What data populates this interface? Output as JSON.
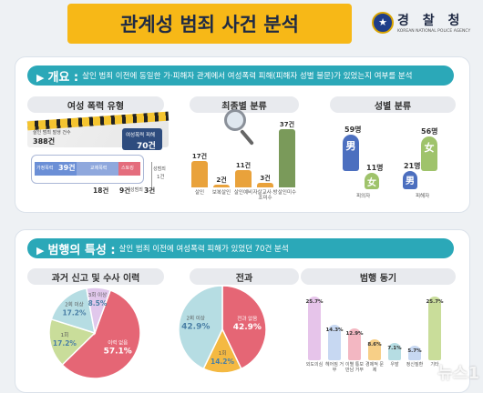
{
  "header": {
    "title": "관계성 범죄 사건 분석",
    "agency_name": "경 찰 청",
    "agency_sub": "KOREAN NATIONAL POLICE AGENCY"
  },
  "overview": {
    "heading": "개요",
    "desc": "살인 범죄 이전에 동일한 가·피해자 관계에서 여성폭력 피해(피해자 성별 불문)가 있었는지 여부를 분석"
  },
  "violence_type": {
    "title": "여성 폭력 유형",
    "total_label": "살인 범죄 발생 건수",
    "total_value": "388건",
    "victim_label": "여성폭력 피해",
    "victim_value": "70건",
    "segments": [
      {
        "label": "가정폭력",
        "value": "39건",
        "color": "#6b8fd6"
      },
      {
        "label": "교제폭력",
        "value": "",
        "color": "#8fa8dd"
      },
      {
        "label": "스토킹",
        "value": "",
        "color": "#e46d7d"
      }
    ],
    "below_values": [
      "18건",
      "9건"
    ],
    "sexual_label": "성범죄",
    "sexual_small": "1건",
    "sexual_value": "3건"
  },
  "final_type": {
    "title": "최종별 분류",
    "chart_data": {
      "type": "bar",
      "categories": [
        "살인",
        "보복살인",
        "살인예비",
        "자살교사·방조미수",
        "살인미수"
      ],
      "values": [
        17,
        2,
        11,
        3,
        37
      ],
      "labels": [
        "17건",
        "2건",
        "11건",
        "3건",
        "37건"
      ],
      "colors": [
        "#e9a23b",
        "#e9a23b",
        "#e9a23b",
        "#e9a23b",
        "#7a9a5a"
      ]
    }
  },
  "gender": {
    "title": "성별 분류",
    "groups": [
      {
        "label": "피의자",
        "male_value": "59명",
        "female_value": "11명"
      },
      {
        "label": "피해자",
        "male_value": "21명",
        "female_value": "56명"
      }
    ],
    "male_char": "男",
    "female_char": "女"
  },
  "characteristics": {
    "heading": "범행의 특성",
    "desc": "살인 범죄 이전에 여성폭력 피해가 있었던 70건 분석"
  },
  "past_report": {
    "title": "과거 신고 및 수사 이력",
    "chart_data": {
      "type": "pie",
      "slices": [
        {
          "label": "이력 없음",
          "value": 57.1,
          "text": "57.1%",
          "color": "#e56675"
        },
        {
          "label": "1회",
          "value": 17.2,
          "text": "17.2%",
          "color": "#c9dd9a"
        },
        {
          "label": "2회 이상",
          "value": 17.2,
          "text": "17.2%",
          "color": "#b6dde3"
        },
        {
          "label": "3회 이상",
          "value": 8.5,
          "text": "8.5%",
          "color": "#e1c8ec"
        }
      ]
    }
  },
  "criminal_record": {
    "title": "전과",
    "chart_data": {
      "type": "pie",
      "slices": [
        {
          "label": "전과 없음",
          "value": 42.9,
          "text": "42.9%",
          "color": "#e56675"
        },
        {
          "label": "1회",
          "value": 14.2,
          "text": "14.2%",
          "color": "#f4b942"
        },
        {
          "label": "2회 이상",
          "value": 42.9,
          "text": "42.9%",
          "color": "#b6dde3"
        }
      ]
    }
  },
  "motive": {
    "title": "범행 동기",
    "chart_data": {
      "type": "bar",
      "categories": [
        "외도의심",
        "헤어짐 거부",
        "이별 통보 만남 거부",
        "경제적 문제",
        "우발",
        "정신질환",
        "기타"
      ],
      "values": [
        25.7,
        14.3,
        12.9,
        8.6,
        7.1,
        5.7,
        25.7
      ],
      "labels": [
        "25.7%",
        "14.3%",
        "12.9%",
        "8.6%",
        "7.1%",
        "5.7%",
        "25.7%"
      ],
      "colors": [
        "#e6c4ea",
        "#c7d8f2",
        "#f3b7c2",
        "#f7cf87",
        "#b6dde3",
        "#c7d8f2",
        "#c9dd9a"
      ]
    }
  },
  "watermark": "뉴스1"
}
